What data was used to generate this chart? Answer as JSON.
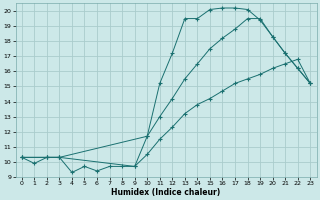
{
  "xlabel": "Humidex (Indice chaleur)",
  "bg_color": "#cce8e8",
  "grid_color": "#aacccc",
  "line_color": "#1a7070",
  "xlim": [
    -0.5,
    23.5
  ],
  "ylim": [
    9,
    20.5
  ],
  "xticks": [
    0,
    1,
    2,
    3,
    4,
    5,
    6,
    7,
    8,
    9,
    10,
    11,
    12,
    13,
    14,
    15,
    16,
    17,
    18,
    19,
    20,
    21,
    22,
    23
  ],
  "yticks": [
    9,
    10,
    11,
    12,
    13,
    14,
    15,
    16,
    17,
    18,
    19,
    20
  ],
  "curve1_x": [
    0,
    1,
    2,
    3,
    4,
    5,
    6,
    7,
    8,
    9,
    10,
    11,
    12,
    13,
    14,
    15,
    16,
    17,
    18,
    19,
    20,
    21,
    22,
    23
  ],
  "curve1_y": [
    10.3,
    9.9,
    10.3,
    10.3,
    9.3,
    9.7,
    9.4,
    9.7,
    9.7,
    9.7,
    11.7,
    15.2,
    17.2,
    19.5,
    19.5,
    20.1,
    20.2,
    20.2,
    20.1,
    19.4,
    18.3,
    17.2,
    16.2,
    15.2
  ],
  "curve2_x": [
    0,
    2,
    3,
    10,
    11,
    12,
    13,
    14,
    15,
    16,
    17,
    18,
    19,
    20,
    21,
    22,
    23
  ],
  "curve2_y": [
    10.3,
    10.3,
    10.3,
    11.7,
    13.0,
    14.2,
    15.5,
    16.5,
    17.5,
    18.2,
    18.8,
    19.5,
    19.5,
    18.3,
    17.2,
    16.2,
    15.2
  ],
  "curve3_x": [
    0,
    2,
    3,
    9,
    10,
    11,
    12,
    13,
    14,
    15,
    16,
    17,
    18,
    19,
    20,
    21,
    22,
    23
  ],
  "curve3_y": [
    10.3,
    10.3,
    10.3,
    9.7,
    10.5,
    11.5,
    12.3,
    13.2,
    13.8,
    14.2,
    14.7,
    15.2,
    15.5,
    15.8,
    16.2,
    16.5,
    16.8,
    15.2
  ]
}
